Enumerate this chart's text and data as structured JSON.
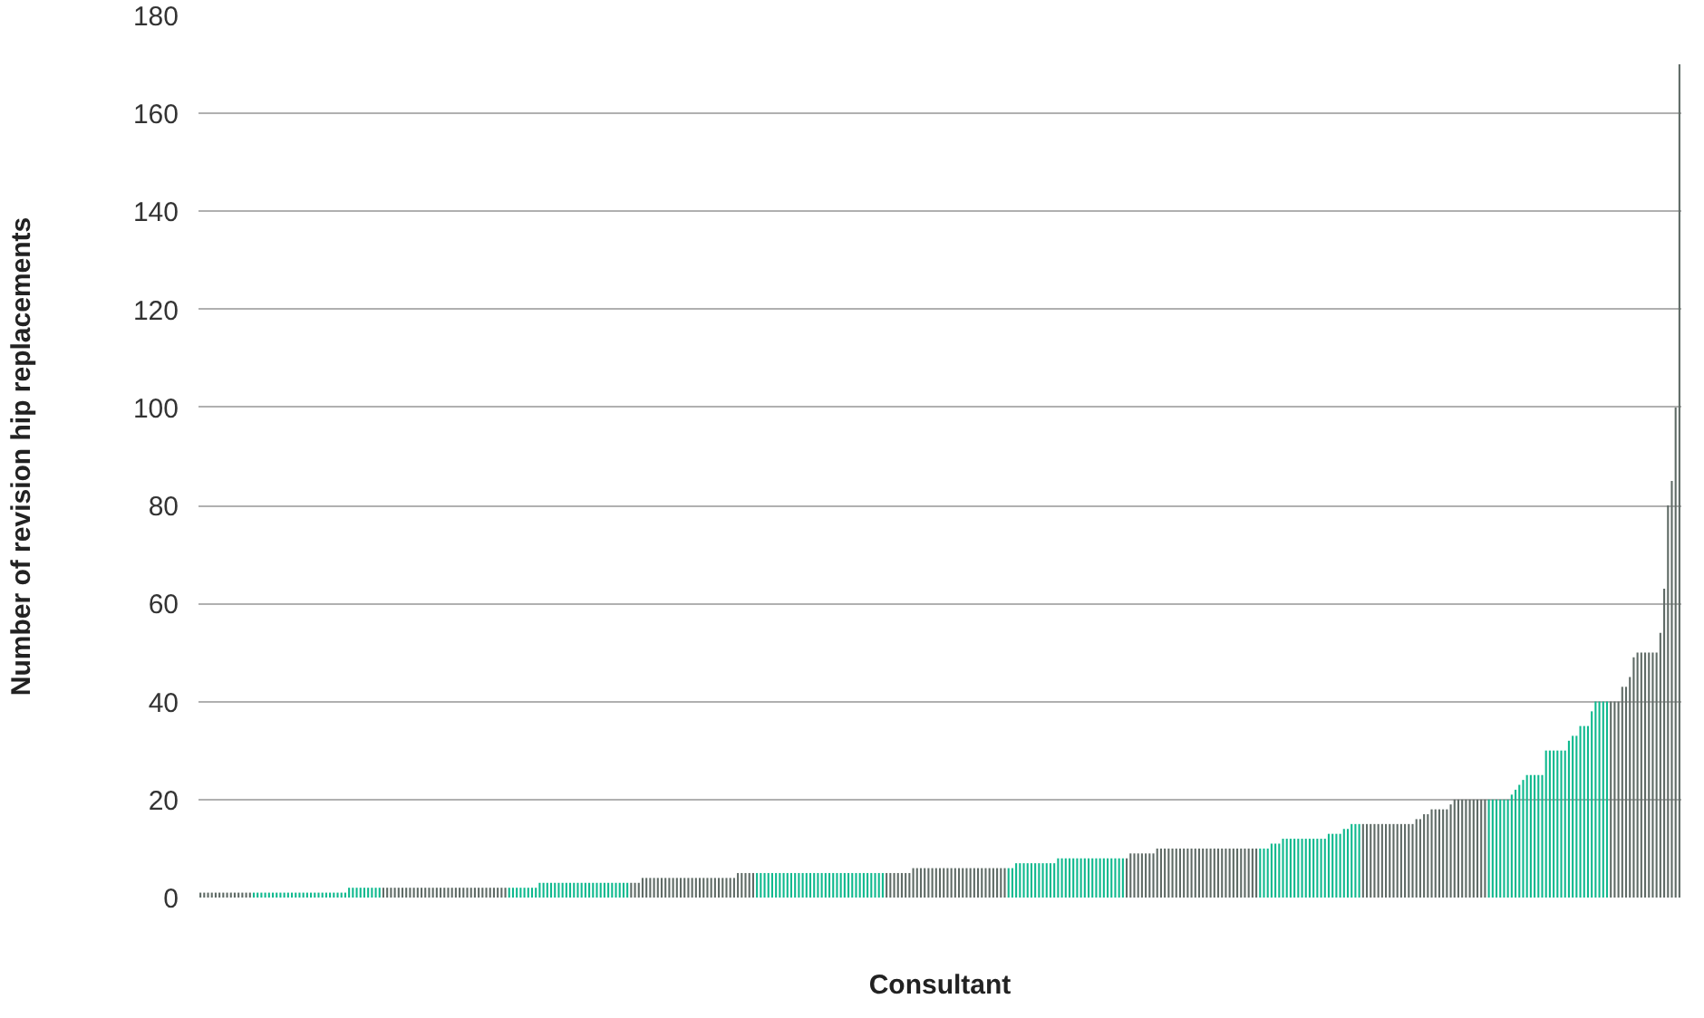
{
  "chart_data": {
    "type": "bar",
    "xlabel": "Consultant",
    "ylabel": "Number of revision hip replacements",
    "ylim": [
      0,
      180
    ],
    "yticks": [
      0,
      20,
      40,
      60,
      80,
      100,
      120,
      140,
      160,
      180
    ],
    "grid": "y",
    "categories": [
      null,
      null,
      null,
      null,
      null,
      null,
      null,
      null,
      null,
      null,
      null,
      null,
      null,
      null,
      null,
      null,
      null,
      null,
      null,
      null,
      null,
      null,
      null,
      null,
      null,
      null,
      null,
      null,
      null,
      null,
      null,
      null,
      null,
      null,
      null,
      null,
      null,
      null,
      null,
      null,
      null,
      null,
      null,
      null,
      null,
      null,
      null,
      null,
      null,
      null,
      null,
      null,
      null,
      null,
      null,
      null,
      null,
      null,
      null,
      null,
      null,
      null,
      null,
      null,
      null,
      null,
      null,
      null,
      null,
      null,
      null,
      null,
      null,
      null,
      null,
      null,
      null,
      null,
      null,
      null,
      null,
      null,
      null,
      null,
      null,
      null,
      null,
      null,
      null,
      null,
      null,
      null,
      null,
      null,
      null,
      null,
      null,
      null,
      null,
      null,
      null,
      null,
      null,
      null,
      null,
      null,
      null,
      null,
      null,
      null,
      null,
      null,
      null,
      null,
      null,
      null,
      null,
      null,
      null,
      null,
      null,
      null,
      null,
      null,
      null,
      null,
      null,
      null,
      null,
      null,
      null,
      null,
      null,
      null,
      null,
      null,
      null,
      null,
      null,
      null,
      null,
      null,
      null,
      null,
      null,
      null,
      null,
      null,
      null,
      null,
      null,
      null,
      null,
      null,
      null,
      null,
      null,
      null,
      null,
      null,
      null,
      null,
      null,
      null,
      null,
      null,
      null,
      null,
      null,
      null,
      null,
      null,
      null,
      null,
      null,
      null,
      null,
      null,
      null,
      null,
      null,
      null,
      null,
      null,
      null,
      null,
      null,
      null,
      null,
      null,
      null,
      null,
      null,
      null,
      null,
      null,
      null,
      null,
      null,
      null,
      null,
      null,
      null,
      null,
      null,
      null,
      null,
      null,
      null,
      null,
      null,
      null,
      null,
      null,
      null,
      null,
      null,
      null,
      null,
      null,
      null,
      null,
      null,
      null,
      null,
      null,
      null,
      null,
      null,
      null,
      null,
      null,
      null,
      null,
      null,
      null,
      null,
      null,
      null,
      null,
      null,
      null,
      null,
      null,
      null,
      null,
      null,
      null,
      null,
      null,
      null,
      null,
      null,
      null,
      null,
      null,
      null,
      null,
      null,
      null,
      null,
      null,
      null,
      null,
      null,
      null,
      null,
      null,
      null,
      null,
      null,
      null,
      null,
      null,
      null,
      null,
      null,
      null,
      null,
      null,
      null,
      null,
      null,
      null,
      null,
      null,
      null,
      null,
      null,
      null,
      null,
      null,
      null,
      null,
      null,
      null,
      null,
      null,
      null,
      null,
      null,
      null,
      null,
      null,
      null,
      null,
      null,
      null,
      null,
      null,
      null,
      null,
      null,
      null,
      null,
      null,
      null,
      null,
      null,
      null,
      null,
      null,
      null,
      null,
      null,
      null,
      null,
      null,
      null,
      null,
      null,
      null,
      null,
      null,
      null,
      null,
      null,
      null,
      null,
      null,
      null,
      null,
      null,
      null,
      null,
      null,
      null,
      null,
      null,
      null,
      null,
      null,
      null,
      null,
      null,
      null,
      null,
      null,
      null,
      null,
      null,
      null,
      null,
      null,
      null,
      null,
      null,
      null,
      null,
      null,
      null,
      null,
      null,
      null,
      null,
      null,
      null,
      null,
      null,
      null,
      null,
      null,
      null,
      null,
      null,
      null,
      null,
      null,
      null
    ],
    "values": [
      1,
      1,
      1,
      1,
      1,
      1,
      1,
      1,
      1,
      1,
      1,
      1,
      1,
      1,
      1,
      1,
      1,
      1,
      1,
      1,
      1,
      1,
      1,
      1,
      1,
      1,
      1,
      1,
      1,
      1,
      1,
      1,
      1,
      1,
      1,
      1,
      1,
      1,
      1,
      2,
      2,
      2,
      2,
      2,
      2,
      2,
      2,
      2,
      2,
      2,
      2,
      2,
      2,
      2,
      2,
      2,
      2,
      2,
      2,
      2,
      2,
      2,
      2,
      2,
      2,
      2,
      2,
      2,
      2,
      2,
      2,
      2,
      2,
      2,
      2,
      2,
      2,
      2,
      2,
      2,
      2,
      2,
      2,
      2,
      2,
      2,
      2,
      2,
      2,
      3,
      3,
      3,
      3,
      3,
      3,
      3,
      3,
      3,
      3,
      3,
      3,
      3,
      3,
      3,
      3,
      3,
      3,
      3,
      3,
      3,
      3,
      3,
      3,
      3,
      3,
      3,
      4,
      4,
      4,
      4,
      4,
      4,
      4,
      4,
      4,
      4,
      4,
      4,
      4,
      4,
      4,
      4,
      4,
      4,
      4,
      4,
      4,
      4,
      4,
      4,
      4,
      5,
      5,
      5,
      5,
      5,
      5,
      5,
      5,
      5,
      5,
      5,
      5,
      5,
      5,
      5,
      5,
      5,
      5,
      5,
      5,
      5,
      5,
      5,
      5,
      5,
      5,
      5,
      5,
      5,
      5,
      5,
      5,
      5,
      5,
      5,
      5,
      5,
      5,
      5,
      5,
      5,
      5,
      5,
      5,
      5,
      5,
      6,
      6,
      6,
      6,
      6,
      6,
      6,
      6,
      6,
      6,
      6,
      6,
      6,
      6,
      6,
      6,
      6,
      6,
      6,
      6,
      6,
      6,
      6,
      6,
      6,
      6,
      6,
      7,
      7,
      7,
      7,
      7,
      7,
      7,
      7,
      7,
      7,
      7,
      8,
      8,
      8,
      8,
      8,
      8,
      8,
      8,
      8,
      8,
      8,
      8,
      8,
      8,
      8,
      8,
      8,
      8,
      8,
      9,
      9,
      9,
      9,
      9,
      9,
      9,
      10,
      10,
      10,
      10,
      10,
      10,
      10,
      10,
      10,
      10,
      10,
      10,
      10,
      10,
      10,
      10,
      10,
      10,
      10,
      10,
      10,
      10,
      10,
      10,
      10,
      10,
      10,
      10,
      10,
      10,
      11,
      11,
      11,
      12,
      12,
      12,
      12,
      12,
      12,
      12,
      12,
      12,
      12,
      12,
      12,
      13,
      13,
      13,
      13,
      14,
      14,
      15,
      15,
      15,
      15,
      15,
      15,
      15,
      15,
      15,
      15,
      15,
      15,
      15,
      15,
      15,
      15,
      15,
      16,
      16,
      17,
      17,
      18,
      18,
      18,
      18,
      18,
      19,
      20,
      20,
      20,
      20,
      20,
      20,
      20,
      20,
      20,
      20,
      20,
      20,
      20,
      20,
      20,
      21,
      22,
      23,
      24,
      25,
      25,
      25,
      25,
      25,
      30,
      30,
      30,
      30,
      30,
      30,
      32,
      33,
      33,
      35,
      35,
      35,
      38,
      40,
      40,
      40,
      40,
      40,
      40,
      40,
      43,
      43,
      45,
      49,
      50,
      50,
      50,
      50,
      50,
      50,
      54,
      63,
      80,
      85,
      100,
      170
    ],
    "colors": [
      "#5f6b66",
      "#5f6b66",
      "#5f6b66",
      "#5f6b66",
      "#5f6b66",
      "#5f6b66",
      "#5f6b66",
      "#5f6b66",
      "#5f6b66",
      "#5f6b66",
      "#5f6b66",
      "#5f6b66",
      "#5f6b66",
      "#5f6b66",
      "#0fb98e",
      "#0fb98e",
      "#0fb98e",
      "#0fb98e",
      "#0fb98e",
      "#0fb98e",
      "#0fb98e",
      "#0fb98e",
      "#0fb98e",
      "#0fb98e",
      "#0fb98e",
      "#0fb98e",
      "#0fb98e",
      "#0fb98e",
      "#0fb98e",
      "#0fb98e",
      "#0fb98e",
      "#0fb98e",
      "#0fb98e",
      "#0fb98e",
      "#0fb98e",
      "#0fb98e",
      "#0fb98e",
      "#0fb98e",
      "#0fb98e",
      "#0fb98e",
      "#0fb98e",
      "#0fb98e",
      "#0fb98e",
      "#0fb98e",
      "#0fb98e",
      "#0fb98e",
      "#0fb98e",
      "#0fb98e",
      "#5f6b66",
      "#5f6b66",
      "#5f6b66",
      "#5f6b66",
      "#5f6b66",
      "#5f6b66",
      "#5f6b66",
      "#5f6b66",
      "#5f6b66",
      "#5f6b66",
      "#5f6b66",
      "#5f6b66",
      "#5f6b66",
      "#5f6b66",
      "#5f6b66",
      "#5f6b66",
      "#5f6b66",
      "#5f6b66",
      "#5f6b66",
      "#5f6b66",
      "#5f6b66",
      "#5f6b66",
      "#5f6b66",
      "#5f6b66",
      "#5f6b66",
      "#5f6b66",
      "#5f6b66",
      "#5f6b66",
      "#5f6b66",
      "#5f6b66",
      "#5f6b66",
      "#5f6b66",
      "#5f6b66",
      "#0fb98e",
      "#0fb98e",
      "#0fb98e",
      "#0fb98e",
      "#0fb98e",
      "#0fb98e",
      "#0fb98e",
      "#0fb98e",
      "#0fb98e",
      "#0fb98e",
      "#0fb98e",
      "#0fb98e",
      "#0fb98e",
      "#0fb98e",
      "#0fb98e",
      "#0fb98e",
      "#0fb98e",
      "#0fb98e",
      "#0fb98e",
      "#0fb98e",
      "#0fb98e",
      "#0fb98e",
      "#0fb98e",
      "#0fb98e",
      "#0fb98e",
      "#0fb98e",
      "#0fb98e",
      "#0fb98e",
      "#0fb98e",
      "#0fb98e",
      "#0fb98e",
      "#0fb98e",
      "#5f6b66",
      "#5f6b66",
      "#5f6b66",
      "#5f6b66",
      "#5f6b66",
      "#5f6b66",
      "#5f6b66",
      "#5f6b66",
      "#5f6b66",
      "#5f6b66",
      "#5f6b66",
      "#5f6b66",
      "#5f6b66",
      "#5f6b66",
      "#5f6b66",
      "#5f6b66",
      "#5f6b66",
      "#5f6b66",
      "#5f6b66",
      "#5f6b66",
      "#5f6b66",
      "#5f6b66",
      "#5f6b66",
      "#5f6b66",
      "#5f6b66",
      "#5f6b66",
      "#5f6b66",
      "#5f6b66",
      "#5f6b66",
      "#5f6b66",
      "#5f6b66",
      "#5f6b66",
      "#5f6b66",
      "#0fb98e",
      "#0fb98e",
      "#0fb98e",
      "#0fb98e",
      "#0fb98e",
      "#0fb98e",
      "#0fb98e",
      "#0fb98e",
      "#0fb98e",
      "#0fb98e",
      "#0fb98e",
      "#0fb98e",
      "#0fb98e",
      "#0fb98e",
      "#0fb98e",
      "#0fb98e",
      "#0fb98e",
      "#0fb98e",
      "#0fb98e",
      "#0fb98e",
      "#0fb98e",
      "#0fb98e",
      "#0fb98e",
      "#0fb98e",
      "#0fb98e",
      "#0fb98e",
      "#0fb98e",
      "#0fb98e",
      "#0fb98e",
      "#0fb98e",
      "#0fb98e",
      "#0fb98e",
      "#0fb98e",
      "#0fb98e",
      "#5f6b66",
      "#5f6b66",
      "#5f6b66",
      "#5f6b66",
      "#5f6b66",
      "#5f6b66",
      "#5f6b66",
      "#5f6b66",
      "#5f6b66",
      "#5f6b66",
      "#5f6b66",
      "#5f6b66",
      "#5f6b66",
      "#5f6b66",
      "#5f6b66",
      "#5f6b66",
      "#5f6b66",
      "#5f6b66",
      "#5f6b66",
      "#5f6b66",
      "#5f6b66",
      "#5f6b66",
      "#5f6b66",
      "#5f6b66",
      "#5f6b66",
      "#5f6b66",
      "#5f6b66",
      "#5f6b66",
      "#5f6b66",
      "#5f6b66",
      "#5f6b66",
      "#5f6b66",
      "#0fb98e",
      "#0fb98e",
      "#0fb98e",
      "#0fb98e",
      "#0fb98e",
      "#0fb98e",
      "#0fb98e",
      "#0fb98e",
      "#0fb98e",
      "#0fb98e",
      "#0fb98e",
      "#0fb98e",
      "#0fb98e",
      "#0fb98e",
      "#0fb98e",
      "#0fb98e",
      "#0fb98e",
      "#0fb98e",
      "#0fb98e",
      "#0fb98e",
      "#0fb98e",
      "#0fb98e",
      "#0fb98e",
      "#0fb98e",
      "#0fb98e",
      "#0fb98e",
      "#0fb98e",
      "#0fb98e",
      "#0fb98e",
      "#0fb98e",
      "#0fb98e",
      "#5f6b66",
      "#5f6b66",
      "#5f6b66",
      "#5f6b66",
      "#5f6b66",
      "#5f6b66",
      "#5f6b66",
      "#5f6b66",
      "#5f6b66",
      "#5f6b66",
      "#5f6b66",
      "#5f6b66",
      "#5f6b66",
      "#5f6b66",
      "#5f6b66",
      "#5f6b66",
      "#5f6b66",
      "#5f6b66",
      "#5f6b66",
      "#5f6b66",
      "#5f6b66",
      "#5f6b66",
      "#5f6b66",
      "#5f6b66",
      "#5f6b66",
      "#5f6b66",
      "#5f6b66",
      "#5f6b66",
      "#5f6b66",
      "#5f6b66",
      "#5f6b66",
      "#5f6b66",
      "#5f6b66",
      "#5f6b66",
      "#5f6b66",
      "#0fb98e",
      "#0fb98e",
      "#0fb98e",
      "#0fb98e",
      "#0fb98e",
      "#0fb98e",
      "#0fb98e",
      "#0fb98e",
      "#0fb98e",
      "#0fb98e",
      "#0fb98e",
      "#0fb98e",
      "#0fb98e",
      "#0fb98e",
      "#0fb98e",
      "#0fb98e",
      "#0fb98e",
      "#0fb98e",
      "#0fb98e",
      "#0fb98e",
      "#0fb98e",
      "#0fb98e",
      "#0fb98e",
      "#0fb98e",
      "#0fb98e",
      "#0fb98e",
      "#0fb98e",
      "#5f6b66",
      "#5f6b66",
      "#5f6b66",
      "#5f6b66",
      "#5f6b66",
      "#5f6b66",
      "#5f6b66",
      "#5f6b66",
      "#5f6b66",
      "#5f6b66",
      "#5f6b66",
      "#5f6b66",
      "#5f6b66",
      "#5f6b66",
      "#5f6b66",
      "#5f6b66",
      "#5f6b66",
      "#5f6b66",
      "#5f6b66",
      "#5f6b66",
      "#5f6b66",
      "#5f6b66",
      "#5f6b66",
      "#5f6b66",
      "#5f6b66",
      "#5f6b66",
      "#5f6b66",
      "#5f6b66",
      "#5f6b66",
      "#5f6b66",
      "#5f6b66",
      "#5f6b66",
      "#5f6b66",
      "#0fb98e",
      "#0fb98e",
      "#0fb98e",
      "#0fb98e",
      "#0fb98e",
      "#0fb98e",
      "#0fb98e",
      "#0fb98e",
      "#0fb98e",
      "#0fb98e",
      "#0fb98e",
      "#0fb98e",
      "#0fb98e",
      "#0fb98e",
      "#0fb98e",
      "#0fb98e",
      "#0fb98e",
      "#0fb98e",
      "#0fb98e",
      "#0fb98e",
      "#0fb98e",
      "#0fb98e",
      "#0fb98e",
      "#0fb98e",
      "#0fb98e",
      "#0fb98e",
      "#0fb98e",
      "#0fb98e",
      "#0fb98e",
      "#0fb98e",
      "#0fb98e",
      "#0fb98e",
      "#5f6b66",
      "#5f6b66",
      "#5f6b66",
      "#5f6b66",
      "#5f6b66",
      "#5f6b66",
      "#5f6b66",
      "#5f6b66",
      "#5f6b66",
      "#5f6b66",
      "#5f6b66",
      "#5f6b66",
      "#5f6b66",
      "#5f6b66",
      "#5f6b66",
      "#5f6b66",
      "#5f6b66",
      "#5f6b66",
      "#5f6b66"
    ]
  }
}
